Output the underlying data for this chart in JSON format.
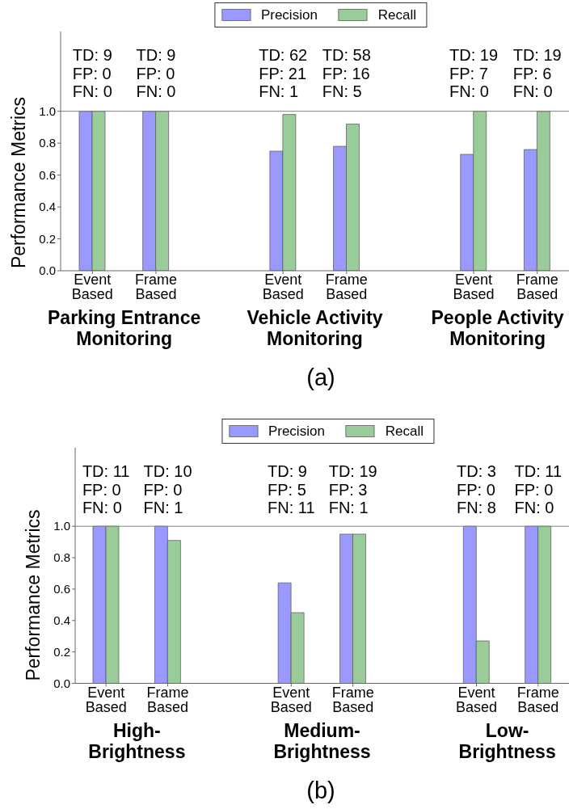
{
  "chart_data": [
    {
      "type": "bar",
      "ylabel": "Performance Metrics",
      "categories": [
        "Event\nBased",
        "Frame\nBased",
        null,
        "Event\nBased",
        "Frame\nBased",
        null,
        "Event\nBased",
        "Frame\nBased"
      ],
      "series": [
        {
          "name": "Precision",
          "color": "#9999ff",
          "values": [
            1,
            1,
            null,
            0.75,
            0.78,
            null,
            0.73,
            0.76
          ]
        },
        {
          "name": "Recall",
          "color": "#99cc99",
          "values": [
            1,
            1,
            null,
            0.98,
            0.92,
            null,
            1,
            1
          ]
        }
      ],
      "ylim": [
        0,
        1.5
      ],
      "yticks": [
        {
          "value": 0,
          "label": "0.0"
        },
        {
          "value": 0.2,
          "label": "0.2"
        },
        {
          "value": 0.4,
          "label": "0.4"
        },
        {
          "value": 0.6,
          "label": "0.6"
        },
        {
          "value": 0.8,
          "label": "0.8"
        },
        {
          "value": 1,
          "label": "1.0"
        }
      ],
      "legend": "top",
      "ref_lines": [
        {
          "axis": "y",
          "value": 1,
          "color": "#808080"
        }
      ],
      "annotations": [
        "TD: 9\nFP: 0\nFN: 0",
        "TD: 9\nFP: 0\nFN: 0",
        "TD: 62\nFP: 21\nFN: 1",
        "TD: 58\nFP: 16\nFN: 5",
        "TD: 19\nFP: 7\nFN: 0",
        "TD: 19\nFP: 6\nFN: 0",
        "Parking Entrance\nMonitoring",
        "Vehicle Activity\nMonitoring",
        "People Activity\nMonitoring",
        "(a)"
      ]
    },
    {
      "type": "bar",
      "ylabel": "Performance Metrics",
      "categories": [
        "Event\nBased",
        "Frame\nBased",
        null,
        "Event\nBased",
        "Frame\nBased",
        null,
        "Event\nBased",
        "Frame\nBased"
      ],
      "series": [
        {
          "name": "Precision",
          "color": "#9999ff",
          "values": [
            1,
            1,
            null,
            0.64,
            0.95,
            null,
            1,
            1
          ]
        },
        {
          "name": "Recall",
          "color": "#99cc99",
          "values": [
            1,
            0.91,
            null,
            0.45,
            0.95,
            null,
            0.27,
            1
          ]
        }
      ],
      "ylim": [
        0,
        1.5
      ],
      "yticks": [
        {
          "value": 0,
          "label": "0.0"
        },
        {
          "value": 0.2,
          "label": "0.2"
        },
        {
          "value": 0.4,
          "label": "0.4"
        },
        {
          "value": 0.6,
          "label": "0.6"
        },
        {
          "value": 0.8,
          "label": "0.8"
        },
        {
          "value": 1,
          "label": "1.0"
        }
      ],
      "legend": "top",
      "ref_lines": [
        {
          "axis": "y",
          "value": 1,
          "color": "#808080"
        }
      ],
      "annotations": [
        "TD: 11\nFP: 0\nFN: 0",
        "TD: 10\nFP: 0\nFN: 1",
        "TD: 9\nFP: 5\nFN: 11",
        "TD: 19\nFP: 3\nFN: 1",
        "TD: 3\nFP: 0\nFN: 8",
        "TD: 11\nFP: 0\nFN: 0",
        "High-\nBrightness",
        "Medium-\nBrightness",
        "Low-\nBrightness",
        "(b)"
      ]
    }
  ]
}
